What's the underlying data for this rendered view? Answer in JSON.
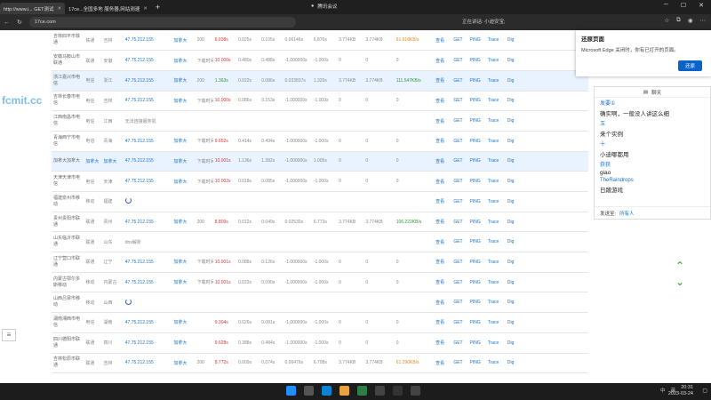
{
  "browser": {
    "tabs": [
      {
        "label": "http://www.i... GET测试",
        "active": true
      },
      {
        "label": "17ce...全国多地 服务器,网站测速",
        "active": false
      }
    ],
    "url": "17ce.com",
    "meeting": "腾讯会议",
    "speaking": "正在讲话: 小迪安宝;"
  },
  "watermark": "fcmit.cc",
  "sidebar_button": "≡",
  "table": {
    "rows": [
      {
        "node": "吉林四平市铁通",
        "isp": "铁通",
        "prov": "吉林",
        "ip": "47.75.212.155",
        "loc": "加拿大",
        "code": "200",
        "t1": "6.938s",
        "t1c": "red",
        "t2": "0.025s",
        "t3": "0.105s",
        "t4": "0.06146s",
        "t5": "6.876s",
        "size": "3.774KB",
        "size2": "3.774KB",
        "speed": "61.618KB/s",
        "speedc": "orange",
        "hl": false
      },
      {
        "node": "安徽马鞍山市联通",
        "isp": "联通",
        "prov": "安徽",
        "ip": "47.75.212.155",
        "loc": "加拿大",
        "code": "下载时间超时",
        "t1": "10.000s",
        "t1c": "red",
        "t2": "0.480s",
        "t3": "0.488s",
        "t4": "-1.000000s",
        "t5": "-1.000s",
        "size": "0",
        "size2": "0",
        "speed": "0",
        "speedc": "",
        "hl": false
      },
      {
        "node": "浙江嘉兴市电信",
        "isp": "电信",
        "prov": "浙江",
        "ip": "47.75.212.155",
        "loc": "加拿大",
        "code": "200",
        "t1": "1.363s",
        "t1c": "green",
        "t2": "0.022s",
        "t3": "0.086s",
        "t4": "0.033837s",
        "t5": "1.329s",
        "size": "3.774KB",
        "size2": "3.774KB",
        "speed": "111.547KB/s",
        "speedc": "green",
        "hl": true
      },
      {
        "node": "吉林长春市电信",
        "isp": "电信",
        "prov": "吉林",
        "ip": "47.75.212.155",
        "loc": "加拿大",
        "code": "下载时间超时",
        "t1": "10.000s",
        "t1c": "red",
        "t2": "0.086s",
        "t3": "0.153s",
        "t4": "-1.000000s",
        "t5": "-1.000s",
        "size": "0",
        "size2": "0",
        "speed": "0",
        "speedc": "",
        "hl": false
      },
      {
        "node": "江西南昌市电信",
        "isp": "电信",
        "prov": "江西",
        "ip": "无法连接服务机",
        "loc": "",
        "code": "",
        "t1": "",
        "t1c": "",
        "t2": "",
        "t3": "",
        "t4": "",
        "t5": "",
        "size": "",
        "size2": "",
        "speed": "",
        "speedc": "",
        "hl": false
      },
      {
        "node": "青海西宁市电信",
        "isp": "电信",
        "prov": "青海",
        "ip": "47.75.212.155",
        "loc": "加拿大",
        "code": "下载时间超时",
        "t1": "9.652s",
        "t1c": "red",
        "t2": "0.414s",
        "t3": "0.494s",
        "t4": "-1.000000s",
        "t5": "-1.000s",
        "size": "0",
        "size2": "0",
        "speed": "0",
        "speedc": "",
        "hl": false
      },
      {
        "node": "加拿大加拿大",
        "isp": "加拿大",
        "prov": "加拿大",
        "ip": "47.75.212.155",
        "loc": "加拿大",
        "code": "下载时间超时",
        "t1": "10.001s",
        "t1c": "red",
        "t2": "1.136s",
        "t3": "1.382s",
        "t4": "-1.000000s",
        "t5": "1.005s",
        "size": "0",
        "size2": "0",
        "speed": "0",
        "speedc": "",
        "hl": true
      },
      {
        "node": "天津天津市电信",
        "isp": "电信",
        "prov": "天津",
        "ip": "47.75.212.155",
        "loc": "加拿大",
        "code": "下载时间超时",
        "t1": "10.002s",
        "t1c": "red",
        "t2": "0.018s",
        "t3": "0.085s",
        "t4": "-1.000000s",
        "t5": "-1.000s",
        "size": "0",
        "size2": "0",
        "speed": "0",
        "speedc": "",
        "hl": false
      },
      {
        "node": "福建泉州市移动",
        "isp": "移动",
        "prov": "福建",
        "ip": "",
        "loc": "",
        "code": "",
        "t1": "",
        "t1c": "",
        "t2": "",
        "t3": "",
        "t4": "",
        "t5": "",
        "size": "",
        "size2": "",
        "speed": "",
        "speedc": "",
        "hl": false,
        "loading": true
      },
      {
        "node": "贵州贵阳市联通",
        "isp": "联通",
        "prov": "贵州",
        "ip": "47.75.212.155",
        "loc": "加拿大",
        "code": "200",
        "t1": "8.809s",
        "t1c": "red",
        "t2": "0.012s",
        "t3": "0.049s",
        "t4": "0.02530s",
        "t5": "6.773s",
        "size": "3.774KB",
        "size2": "3.774KB",
        "speed": "106.222KB/s",
        "speedc": "green",
        "hl": false
      },
      {
        "node": "山东临沂市联通",
        "isp": "联通",
        "prov": "山东",
        "ip": "dns解析",
        "loc": "",
        "code": "",
        "t1": "",
        "t1c": "",
        "t2": "",
        "t3": "",
        "t4": "",
        "t5": "",
        "size": "",
        "size2": "",
        "speed": "",
        "speedc": "",
        "hl": false
      },
      {
        "node": "辽宁营口市联通",
        "isp": "联通",
        "prov": "辽宁",
        "ip": "47.75.212.155",
        "loc": "加拿大",
        "code": "下载时间超时",
        "t1": "10.001s",
        "t1c": "red",
        "t2": "0.088s",
        "t3": "0.126s",
        "t4": "-1.000000s",
        "t5": "-1.000s",
        "size": "0",
        "size2": "0",
        "speed": "0",
        "speedc": "",
        "hl": false
      },
      {
        "node": "内蒙古鄂尔多斯移动",
        "isp": "移动",
        "prov": "内蒙古",
        "ip": "47.75.212.155",
        "loc": "加拿大",
        "code": "下载时间超时",
        "t1": "10.001s",
        "t1c": "red",
        "t2": "0.022s",
        "t3": "0.090s",
        "t4": "-1.000000s",
        "t5": "-1.000s",
        "size": "0",
        "size2": "0",
        "speed": "0",
        "speedc": "",
        "hl": false
      },
      {
        "node": "山西吕梁市移动",
        "isp": "移动",
        "prov": "山西",
        "ip": "",
        "loc": "",
        "code": "",
        "t1": "",
        "t1c": "",
        "t2": "",
        "t3": "",
        "t4": "",
        "t5": "",
        "size": "",
        "size2": "",
        "speed": "",
        "speedc": "",
        "hl": false,
        "loading": true
      },
      {
        "node": "湖南湘西市电信",
        "isp": "电信",
        "prov": "湖南",
        "ip": "47.75.212.155",
        "loc": "加拿大",
        "code": "",
        "t1": "9.304s",
        "t1c": "red",
        "t2": "0.026s",
        "t3": "0.081s",
        "t4": "-1.000000s",
        "t5": "-1.000s",
        "size": "0",
        "size2": "0",
        "speed": "0",
        "speedc": "",
        "hl": false
      },
      {
        "node": "四川德阳市联通",
        "isp": "联通",
        "prov": "四川",
        "ip": "47.75.212.155",
        "loc": "加拿大",
        "code": "",
        "t1": "9.628s",
        "t1c": "red",
        "t2": "0.388s",
        "t3": "0.484s",
        "t4": "-1.000000s",
        "t5": "-1.000s",
        "size": "0",
        "size2": "0",
        "speed": "0",
        "speedc": "",
        "hl": false
      },
      {
        "node": "吉林松原市联通",
        "isp": "联通",
        "prov": "吉林",
        "ip": "47.75.212.155",
        "loc": "加拿大",
        "code": "200",
        "t1": "8.772s",
        "t1c": "red",
        "t2": "0.009s",
        "t3": "0.074s",
        "t4": "0.06476s",
        "t5": "6.708s",
        "size": "3.774KB",
        "size2": "3.774KB",
        "speed": "61.290KB/s",
        "speedc": "orange",
        "hl": false
      }
    ],
    "actions": [
      "查看",
      "GET",
      "PING",
      "Trace",
      "Dig"
    ]
  },
  "restore_popup": {
    "title": "还原页面",
    "text": "Microsoft Edge 关闭时，你有已打开的页面。",
    "button": "还原"
  },
  "chat": {
    "title": "聊天",
    "messages": [
      {
        "name": "发要①",
        "text": "确实啊，一般没人讲这么细"
      },
      {
        "name": "玉",
        "text": "来个实例"
      },
      {
        "name": "十",
        "text": "小迪哪都用"
      },
      {
        "name": "获获",
        "text": "giao"
      },
      {
        "name": "TheRaindrops",
        "text": "日蹭游戏"
      }
    ],
    "send_to_label": "发送至:",
    "send_to_value": "所有人"
  },
  "taskbar": {
    "time": "20:31",
    "date": "2023-03-24",
    "ime": "中",
    "lang": "英"
  }
}
